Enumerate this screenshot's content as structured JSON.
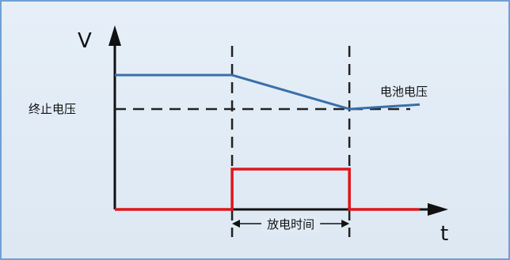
{
  "chart_data": {
    "type": "line",
    "title": "",
    "y_axis_symbol": "V",
    "x_axis_symbol": "t",
    "x": [
      0,
      1,
      2,
      2.6
    ],
    "series": [
      {
        "name": "电池电压",
        "values": [
          1.0,
          1.0,
          0.7,
          0.74
        ],
        "color": "#3a6fa8"
      },
      {
        "name": "",
        "steps": [
          {
            "x": 0,
            "y": 0
          },
          {
            "x": 1,
            "y": 0
          },
          {
            "x": 1,
            "y": 1
          },
          {
            "x": 2,
            "y": 1
          },
          {
            "x": 2,
            "y": 0
          },
          {
            "x": 2.6,
            "y": 0
          }
        ],
        "color": "#e0151b"
      }
    ],
    "cutoff_voltage": {
      "label": "终止电压",
      "value": 0.7
    },
    "discharge_window": {
      "label": "放电时间",
      "start": 1,
      "end": 2
    },
    "battery_voltage_label": "电池电压",
    "xlim": [
      0,
      2.6
    ],
    "ylim_voltage": [
      0,
      1.0
    ],
    "grid": false
  }
}
